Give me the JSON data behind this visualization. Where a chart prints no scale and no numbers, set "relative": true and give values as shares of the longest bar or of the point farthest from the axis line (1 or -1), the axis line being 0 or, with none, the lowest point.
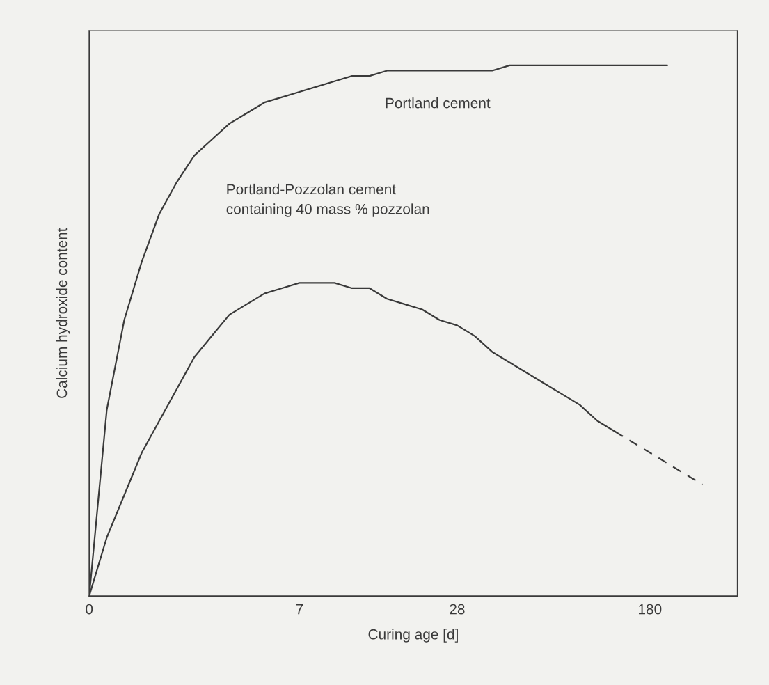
{
  "chart_data": {
    "type": "line",
    "relative": true,
    "xlabel": "Curing age [d]",
    "ylabel": "Calcium hydroxide content",
    "categories": [
      "0",
      null,
      null,
      null,
      null,
      null,
      null,
      null,
      null,
      null,
      null,
      null,
      "7",
      null,
      null,
      null,
      null,
      null,
      null,
      null,
      null,
      "28",
      null,
      null,
      null,
      null,
      null,
      null,
      null,
      null,
      null,
      null,
      "180",
      null,
      null,
      null,
      null,
      null
    ],
    "grid": false,
    "legend": false,
    "marker": "none",
    "series": [
      {
        "color": "#3a3a3a",
        "line_style": "solid",
        "values": [
          0,
          0.35,
          0.52,
          0.63,
          0.72,
          0.78,
          0.83,
          0.86,
          0.89,
          0.91,
          0.93,
          0.94,
          0.95,
          0.96,
          0.97,
          0.98,
          0.98,
          0.99,
          0.99,
          0.99,
          0.99,
          0.99,
          0.99,
          0.99,
          1.0,
          1.0,
          1.0,
          1.0,
          1.0,
          1.0,
          1.0,
          1.0,
          1.0,
          1.0,
          null,
          null,
          null,
          null
        ]
      },
      {
        "color": "#3a3a3a",
        "line_style": "solid",
        "values": [
          0,
          0.11,
          0.19,
          0.27,
          0.33,
          0.39,
          0.45,
          0.49,
          0.53,
          0.55,
          0.57,
          0.58,
          0.59,
          0.59,
          0.59,
          0.58,
          0.58,
          0.56,
          0.55,
          0.54,
          0.52,
          0.51,
          0.49,
          0.46,
          0.44,
          0.42,
          0.4,
          0.38,
          0.36,
          0.33,
          0.31,
          null,
          null,
          null,
          null,
          null,
          null,
          null
        ]
      },
      {
        "color": "#3a3a3a",
        "line_style": "dashed",
        "values": [
          null,
          null,
          null,
          null,
          null,
          null,
          null,
          null,
          null,
          null,
          null,
          null,
          null,
          null,
          null,
          null,
          null,
          null,
          null,
          null,
          null,
          null,
          null,
          null,
          null,
          null,
          null,
          null,
          null,
          null,
          0.31,
          0.29,
          0.27,
          0.25,
          0.23,
          0.21,
          null,
          null
        ]
      }
    ],
    "annotations": [
      "Portland cement",
      "Portland-Pozzolan cement\ncontaining 40 mass % pozzolan"
    ]
  }
}
